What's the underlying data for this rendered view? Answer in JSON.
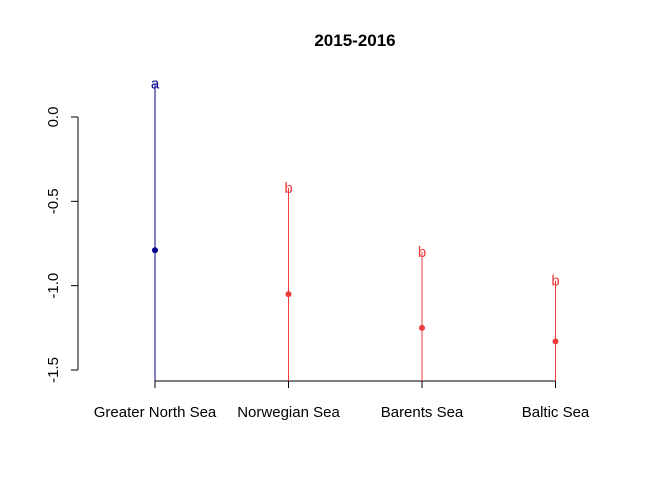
{
  "chart_data": {
    "type": "scatter",
    "title": "2015-2016",
    "xlabel": "",
    "ylabel": "",
    "categories": [
      "Greater North Sea",
      "Norwegian Sea",
      "Barents Sea",
      "Baltic Sea"
    ],
    "values": [
      -0.79,
      -1.05,
      -1.25,
      -1.33
    ],
    "whisker_top": [
      0.2,
      -0.42,
      -0.8,
      -0.97
    ],
    "group_letters": [
      "a",
      "b",
      "b",
      "b"
    ],
    "colors": [
      "#00008B",
      "#EE3B3B",
      "#EE3B3B",
      "#EE3B3B"
    ],
    "y_ticks": [
      0.0,
      -0.5,
      -1.0,
      -1.5
    ],
    "y_tick_labels": [
      "0.0",
      "-0.5",
      "-1.0",
      "-1.5"
    ],
    "ylim": [
      -1.6,
      0.25
    ],
    "grid": false
  }
}
